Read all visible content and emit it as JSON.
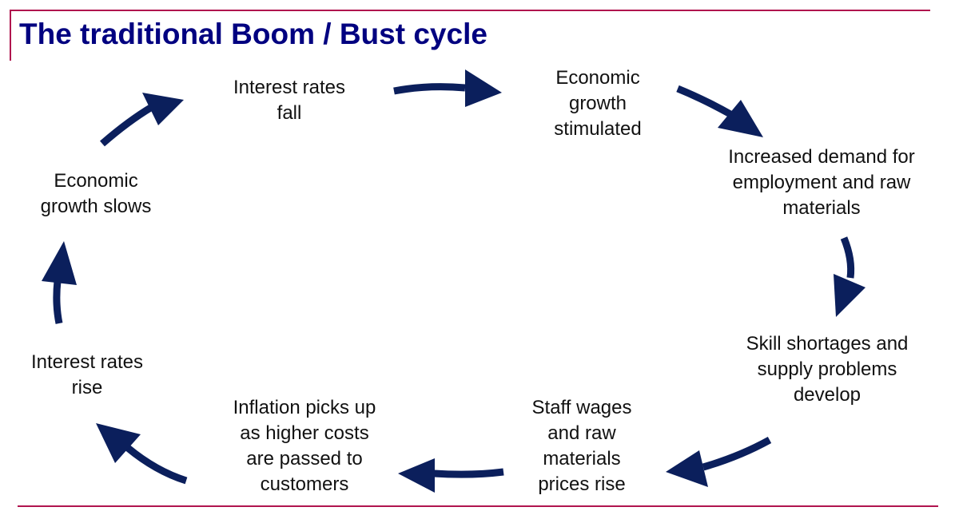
{
  "title": "The traditional Boom / Bust cycle",
  "colors": {
    "accent_rule": "#b0144e",
    "title": "#000080",
    "arrow": "#0b1f5c"
  },
  "steps": [
    {
      "id": "interest-rates-fall",
      "text": "Interest rates\nfall"
    },
    {
      "id": "economic-growth-stimulated",
      "text": "Economic\ngrowth\nstimulated"
    },
    {
      "id": "increased-demand",
      "text": "Increased demand for\nemployment and raw\nmaterials"
    },
    {
      "id": "skill-shortages",
      "text": "Skill shortages and\nsupply problems\ndevelop"
    },
    {
      "id": "staff-wages-rise",
      "text": "Staff wages\nand raw\nmaterials\nprices rise"
    },
    {
      "id": "inflation-picks-up",
      "text": "Inflation picks up\nas higher costs\nare passed to\ncustomers"
    },
    {
      "id": "interest-rates-rise",
      "text": "Interest rates\nrise"
    },
    {
      "id": "economic-growth-slows",
      "text": "Economic\ngrowth slows"
    }
  ],
  "cycle_arrow_icons": [
    "arrow-fall-to-stimulated",
    "arrow-stimulated-to-demand",
    "arrow-demand-to-shortages",
    "arrow-shortages-to-wages",
    "arrow-wages-to-inflation",
    "arrow-inflation-to-rates-rise",
    "arrow-rates-rise-to-slows",
    "arrow-slows-to-rates-fall"
  ]
}
